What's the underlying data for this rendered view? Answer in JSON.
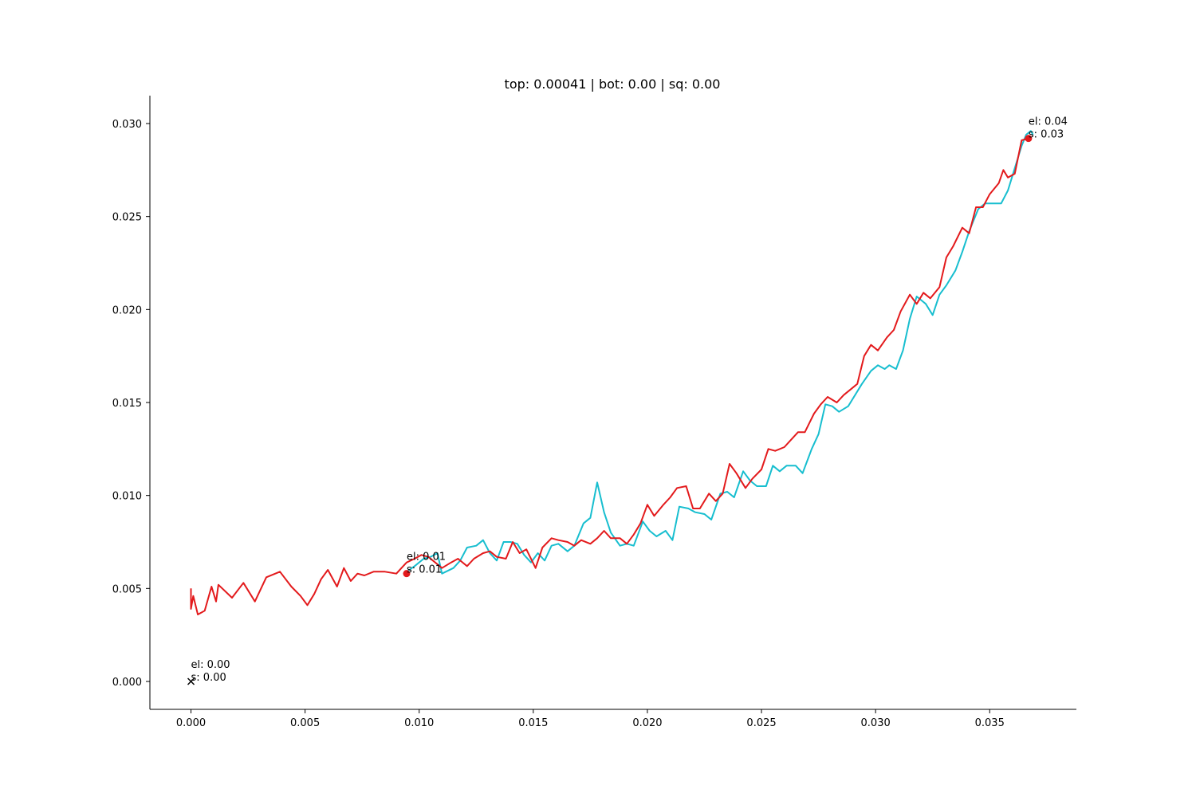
{
  "chart_data": {
    "type": "line",
    "title": "top: 0.00041 | bot: 0.00 | sq: 0.00",
    "xlabel": "",
    "ylabel": "",
    "xlim": [
      -0.0018,
      0.0388
    ],
    "ylim": [
      -0.0015,
      0.0315
    ],
    "grid": false,
    "x_ticks": [
      0.0,
      0.005,
      0.01,
      0.015,
      0.02,
      0.025,
      0.03,
      0.035
    ],
    "x_tick_labels": [
      "0.000",
      "0.005",
      "0.010",
      "0.015",
      "0.020",
      "0.025",
      "0.030",
      "0.035"
    ],
    "y_ticks": [
      0.0,
      0.005,
      0.01,
      0.015,
      0.02,
      0.025,
      0.03
    ],
    "y_tick_labels": [
      "0.000",
      "0.005",
      "0.010",
      "0.015",
      "0.020",
      "0.025",
      "0.030"
    ],
    "series": [
      {
        "color": "#17becf",
        "points": [
          [
            0.00945,
            0.0059
          ],
          [
            0.0098,
            0.0062
          ],
          [
            0.0102,
            0.0066
          ],
          [
            0.0105,
            0.0067
          ],
          [
            0.0108,
            0.0069
          ],
          [
            0.011,
            0.0058
          ],
          [
            0.0115,
            0.0061
          ],
          [
            0.0118,
            0.0065
          ],
          [
            0.0121,
            0.0072
          ],
          [
            0.0125,
            0.0073
          ],
          [
            0.0128,
            0.0076
          ],
          [
            0.0131,
            0.0069
          ],
          [
            0.0134,
            0.0065
          ],
          [
            0.0137,
            0.0075
          ],
          [
            0.014,
            0.0075
          ],
          [
            0.0143,
            0.0074
          ],
          [
            0.0146,
            0.0068
          ],
          [
            0.0149,
            0.0064
          ],
          [
            0.0152,
            0.0069
          ],
          [
            0.0155,
            0.0065
          ],
          [
            0.0158,
            0.0073
          ],
          [
            0.0161,
            0.0074
          ],
          [
            0.0165,
            0.007
          ],
          [
            0.0168,
            0.0073
          ],
          [
            0.0172,
            0.0085
          ],
          [
            0.0175,
            0.0088
          ],
          [
            0.0178,
            0.0107
          ],
          [
            0.0181,
            0.0091
          ],
          [
            0.0184,
            0.008
          ],
          [
            0.0188,
            0.0073
          ],
          [
            0.0191,
            0.0074
          ],
          [
            0.0194,
            0.0073
          ],
          [
            0.0198,
            0.0086
          ],
          [
            0.0201,
            0.0081
          ],
          [
            0.0204,
            0.0078
          ],
          [
            0.0208,
            0.0081
          ],
          [
            0.0211,
            0.0076
          ],
          [
            0.0214,
            0.0094
          ],
          [
            0.0218,
            0.0093
          ],
          [
            0.0221,
            0.0091
          ],
          [
            0.0225,
            0.009
          ],
          [
            0.0228,
            0.0087
          ],
          [
            0.0232,
            0.0101
          ],
          [
            0.0235,
            0.0102
          ],
          [
            0.0238,
            0.0099
          ],
          [
            0.0242,
            0.0113
          ],
          [
            0.0245,
            0.0108
          ],
          [
            0.0248,
            0.0105
          ],
          [
            0.0252,
            0.0105
          ],
          [
            0.0255,
            0.0116
          ],
          [
            0.0258,
            0.0113
          ],
          [
            0.0261,
            0.0116
          ],
          [
            0.0265,
            0.0116
          ],
          [
            0.0268,
            0.0112
          ],
          [
            0.0272,
            0.0125
          ],
          [
            0.0275,
            0.0133
          ],
          [
            0.0278,
            0.0149
          ],
          [
            0.0281,
            0.0148
          ],
          [
            0.0284,
            0.0145
          ],
          [
            0.0288,
            0.0148
          ],
          [
            0.0291,
            0.0154
          ],
          [
            0.0294,
            0.016
          ],
          [
            0.0298,
            0.0167
          ],
          [
            0.0301,
            0.017
          ],
          [
            0.0304,
            0.0168
          ],
          [
            0.0306,
            0.017
          ],
          [
            0.0309,
            0.0168
          ],
          [
            0.0312,
            0.0178
          ],
          [
            0.0315,
            0.0195
          ],
          [
            0.0318,
            0.0207
          ],
          [
            0.0322,
            0.0203
          ],
          [
            0.0325,
            0.0197
          ],
          [
            0.0328,
            0.0208
          ],
          [
            0.0331,
            0.0213
          ],
          [
            0.0335,
            0.0221
          ],
          [
            0.0338,
            0.0231
          ],
          [
            0.0341,
            0.0242
          ],
          [
            0.0345,
            0.0254
          ],
          [
            0.0348,
            0.0257
          ],
          [
            0.0352,
            0.0257
          ],
          [
            0.0355,
            0.0257
          ],
          [
            0.0358,
            0.0264
          ],
          [
            0.0361,
            0.0276
          ],
          [
            0.0364,
            0.0288
          ],
          [
            0.0366,
            0.0294
          ],
          [
            0.0368,
            0.0296
          ],
          [
            0.0369,
            0.0294
          ]
        ]
      },
      {
        "color": "#e31a1c",
        "points": [
          [
            0.0,
            0.005
          ],
          [
            0.0,
            0.0039
          ],
          [
            0.0001,
            0.0046
          ],
          [
            0.0003,
            0.0036
          ],
          [
            0.0006,
            0.0038
          ],
          [
            0.0009,
            0.0051
          ],
          [
            0.0011,
            0.0043
          ],
          [
            0.0012,
            0.0052
          ],
          [
            0.0018,
            0.0045
          ],
          [
            0.0023,
            0.0053
          ],
          [
            0.0028,
            0.0043
          ],
          [
            0.0033,
            0.0056
          ],
          [
            0.0039,
            0.0059
          ],
          [
            0.0044,
            0.0051
          ],
          [
            0.0048,
            0.0046
          ],
          [
            0.0051,
            0.0041
          ],
          [
            0.0054,
            0.0047
          ],
          [
            0.0057,
            0.0055
          ],
          [
            0.006,
            0.006
          ],
          [
            0.0064,
            0.0051
          ],
          [
            0.0067,
            0.0061
          ],
          [
            0.007,
            0.0054
          ],
          [
            0.0073,
            0.0058
          ],
          [
            0.0076,
            0.0057
          ],
          [
            0.008,
            0.0059
          ],
          [
            0.0085,
            0.0059
          ],
          [
            0.009,
            0.0058
          ],
          [
            0.0093,
            0.0062
          ],
          [
            0.00945,
            0.0064
          ],
          [
            0.0098,
            0.0066
          ],
          [
            0.0101,
            0.0068
          ],
          [
            0.0104,
            0.0067
          ],
          [
            0.0107,
            0.0064
          ],
          [
            0.011,
            0.0061
          ],
          [
            0.0114,
            0.0064
          ],
          [
            0.0117,
            0.0066
          ],
          [
            0.0121,
            0.0062
          ],
          [
            0.0124,
            0.0066
          ],
          [
            0.0128,
            0.0069
          ],
          [
            0.0131,
            0.007
          ],
          [
            0.0134,
            0.0067
          ],
          [
            0.0138,
            0.0066
          ],
          [
            0.0141,
            0.0075
          ],
          [
            0.0144,
            0.0069
          ],
          [
            0.0147,
            0.0071
          ],
          [
            0.0151,
            0.0061
          ],
          [
            0.0154,
            0.0072
          ],
          [
            0.0158,
            0.0077
          ],
          [
            0.0161,
            0.0076
          ],
          [
            0.0165,
            0.0075
          ],
          [
            0.0168,
            0.0073
          ],
          [
            0.0171,
            0.0076
          ],
          [
            0.0175,
            0.0074
          ],
          [
            0.0178,
            0.0077
          ],
          [
            0.0181,
            0.0081
          ],
          [
            0.0184,
            0.0077
          ],
          [
            0.0188,
            0.0077
          ],
          [
            0.0191,
            0.0074
          ],
          [
            0.0194,
            0.0079
          ],
          [
            0.0197,
            0.0085
          ],
          [
            0.02,
            0.0095
          ],
          [
            0.0203,
            0.0089
          ],
          [
            0.0207,
            0.0095
          ],
          [
            0.021,
            0.0099
          ],
          [
            0.0213,
            0.0104
          ],
          [
            0.0217,
            0.0105
          ],
          [
            0.022,
            0.0093
          ],
          [
            0.0223,
            0.0093
          ],
          [
            0.0227,
            0.0101
          ],
          [
            0.023,
            0.0097
          ],
          [
            0.0233,
            0.0101
          ],
          [
            0.0236,
            0.0117
          ],
          [
            0.0239,
            0.0112
          ],
          [
            0.0243,
            0.0104
          ],
          [
            0.0246,
            0.0109
          ],
          [
            0.025,
            0.0114
          ],
          [
            0.0253,
            0.0125
          ],
          [
            0.0256,
            0.0124
          ],
          [
            0.026,
            0.0126
          ],
          [
            0.0263,
            0.013
          ],
          [
            0.0266,
            0.0134
          ],
          [
            0.0269,
            0.0134
          ],
          [
            0.0273,
            0.0144
          ],
          [
            0.0276,
            0.0149
          ],
          [
            0.0279,
            0.0153
          ],
          [
            0.0283,
            0.015
          ],
          [
            0.0286,
            0.0154
          ],
          [
            0.0289,
            0.0157
          ],
          [
            0.0292,
            0.016
          ],
          [
            0.0295,
            0.0175
          ],
          [
            0.0298,
            0.0181
          ],
          [
            0.0301,
            0.0178
          ],
          [
            0.0305,
            0.0185
          ],
          [
            0.0308,
            0.0189
          ],
          [
            0.0311,
            0.0199
          ],
          [
            0.0315,
            0.0208
          ],
          [
            0.0318,
            0.0203
          ],
          [
            0.0321,
            0.0209
          ],
          [
            0.0324,
            0.0206
          ],
          [
            0.0328,
            0.0212
          ],
          [
            0.0331,
            0.0228
          ],
          [
            0.0334,
            0.0234
          ],
          [
            0.0338,
            0.0244
          ],
          [
            0.0341,
            0.0241
          ],
          [
            0.0344,
            0.0255
          ],
          [
            0.0347,
            0.0255
          ],
          [
            0.035,
            0.0262
          ],
          [
            0.0354,
            0.0268
          ],
          [
            0.0356,
            0.0275
          ],
          [
            0.0358,
            0.0271
          ],
          [
            0.0361,
            0.0273
          ],
          [
            0.0364,
            0.0291
          ],
          [
            0.0367,
            0.0292
          ]
        ]
      }
    ],
    "markers": [
      {
        "x": 0.0,
        "y": 0.0,
        "symbol": "x",
        "color": "#000000"
      },
      {
        "x": 0.00945,
        "y": 0.0058,
        "symbol": "dot",
        "color": "#e31a1c"
      },
      {
        "x": 0.0367,
        "y": 0.0292,
        "symbol": "dot",
        "color": "#e31a1c"
      }
    ],
    "annotations": [
      {
        "x": 0.0,
        "y": 0.0,
        "lines": [
          "el: 0.00",
          "s: 0.00"
        ]
      },
      {
        "x": 0.00945,
        "y": 0.0058,
        "lines": [
          "el: 0.01",
          "s: 0.01"
        ]
      },
      {
        "x": 0.0367,
        "y": 0.0292,
        "lines": [
          "el: 0.04",
          "s: 0.03"
        ]
      }
    ]
  }
}
